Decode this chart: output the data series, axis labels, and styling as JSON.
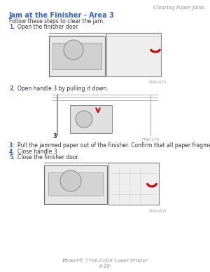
{
  "page_header_right": "Clearing Paper Jams",
  "title": "Jam at the Finisher - Area 3",
  "title_color": "#3366CC",
  "intro": "Follow these steps to clear the jam.",
  "steps": [
    {
      "num": "1.",
      "text": "Open the finisher door."
    },
    {
      "num": "2.",
      "text": "Open handle 3 by pulling it down."
    },
    {
      "num": "3.",
      "text": "Pull the jammed paper out of the finisher. Confirm that all paper fragments are removed."
    },
    {
      "num": "4.",
      "text": "Close handle 3."
    },
    {
      "num": "5.",
      "text": "Close the finisher door."
    }
  ],
  "step_num_color": "#3366CC",
  "body_color": "#333333",
  "bg_color": "#ffffff",
  "footer_line1": "Phaser® 7760 Color Laser Printer",
  "footer_line2": "6-19",
  "img1_caption": "7760-075",
  "img2_caption": "7760-170",
  "img3_caption": "7760-003",
  "img3_label": "3",
  "header_color": "#888888",
  "caption_color": "#999999"
}
